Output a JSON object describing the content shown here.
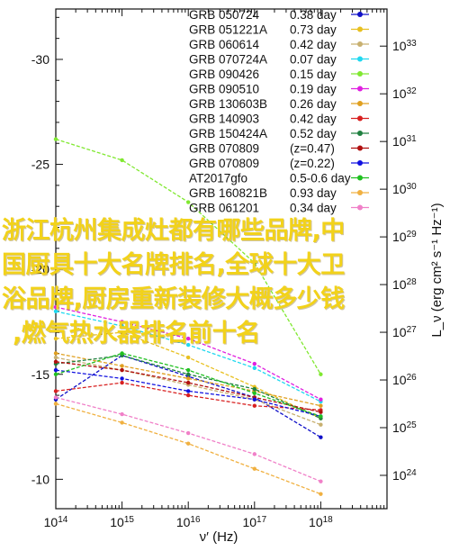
{
  "chart_data": {
    "type": "line",
    "xlabel": "ν′ (Hz)",
    "ylabel_left": "",
    "ylabel_right": "L_ν (erg cm² s⁻¹ Hz⁻¹)",
    "x_scale": "log",
    "xlim": [
      100000000000000.0,
      1e+19
    ],
    "ylim_left": [
      -8.6,
      -32.4
    ],
    "ylim_right": [
      2e+23,
      6e+33
    ],
    "x_ticks": [
      "10^14",
      "10^15",
      "10^16",
      "10^17",
      "10^18"
    ],
    "x_tick_values": [
      100000000000000.0,
      1000000000000000.0,
      1e+16,
      1e+17,
      1e+18
    ],
    "y_left_ticks": [
      "-10",
      "-15",
      "-20",
      "-25",
      "-30"
    ],
    "y_left_tick_values": [
      -10,
      -15,
      -20,
      -25,
      -30
    ],
    "y_right_ticks": [
      "10^24",
      "10^25",
      "10^26",
      "10^27",
      "10^28",
      "10^29",
      "10^30",
      "10^31",
      "10^32",
      "10^33"
    ],
    "y_right_tick_values": [
      1e+24,
      1e+25,
      1e+26,
      1e+27,
      1e+28,
      1e+29,
      1e+30,
      1e+31,
      1e+32,
      1e+33
    ],
    "grid": false,
    "legend_position": "top-right",
    "series": [
      {
        "name": "GRB 050724",
        "label": "0.38 day",
        "color": "#1010c8",
        "x": [
          100000000000000.0,
          1000000000000000.0,
          1e+16,
          1e+17,
          1e+18
        ],
        "y": [
          -13.8,
          -15.9,
          -14.9,
          -13.9,
          -12.0
        ]
      },
      {
        "name": "GRB 051221A",
        "label": "0.73 day",
        "color": "#e8c020",
        "x": [
          100000000000000.0,
          1000000000000000.0,
          1e+16,
          1e+17,
          1e+18
        ],
        "y": [
          -16.7,
          -17.0,
          -15.8,
          -14.4,
          -12.9
        ]
      },
      {
        "name": "GRB 060614",
        "label": "0.42 day",
        "color": "#c8b070",
        "x": [
          100000000000000.0,
          1000000000000000.0,
          1e+16,
          1e+17,
          1e+18
        ],
        "y": [
          -15.8,
          -15.2,
          -14.5,
          -13.8,
          -12.6
        ]
      },
      {
        "name": "GRB 070724A",
        "label": "0.07 day",
        "color": "#20d8f0",
        "x": [
          100000000000000.0,
          1000000000000000.0,
          1e+16,
          1e+17,
          1e+18
        ],
        "y": [
          -18.0,
          -17.3,
          -16.4,
          -15.3,
          -13.7
        ]
      },
      {
        "name": "GRB 090426",
        "label": "0.15 day",
        "color": "#80e830",
        "x": [
          100000000000000.0,
          1000000000000000.0,
          1e+16,
          1e+17,
          1e+18
        ],
        "y": [
          -26.2,
          -25.2,
          -23.2,
          -20.3,
          -15.0
        ]
      },
      {
        "name": "GRB 090510",
        "label": "0.19 day",
        "color": "#e020e0",
        "x": [
          100000000000000.0,
          1000000000000000.0,
          1e+16,
          1e+17,
          1e+18
        ],
        "y": [
          -18.2,
          -17.5,
          -16.7,
          -15.5,
          -13.8
        ]
      },
      {
        "name": "GRB 130603B",
        "label": "0.26 day",
        "color": "#e0a020",
        "x": [
          100000000000000.0,
          1000000000000000.0,
          1e+16,
          1e+17,
          1e+18
        ],
        "y": [
          -16.0,
          -15.4,
          -14.8,
          -14.2,
          -13.5
        ]
      },
      {
        "name": "GRB 140903",
        "label": "0.42 day",
        "color": "#d82020",
        "x": [
          100000000000000.0,
          1000000000000000.0,
          1e+16,
          1e+17,
          1e+18
        ],
        "y": [
          -14.2,
          -14.6,
          -14.0,
          -13.5,
          -13.3
        ]
      },
      {
        "name": "GRB 150424A",
        "label": "0.52 day",
        "color": "#208040",
        "x": [
          100000000000000.0,
          1000000000000000.0,
          1e+16,
          1e+17,
          1e+18
        ],
        "y": [
          -15.5,
          -15.9,
          -15.0,
          -14.3,
          -12.9
        ]
      },
      {
        "name": "GRB 070809",
        "label": "(z=0.47)",
        "color": "#b01010",
        "x": [
          100000000000000.0,
          1000000000000000.0,
          1e+16,
          1e+17,
          1e+18
        ],
        "y": [
          -15.6,
          -15.2,
          -14.6,
          -13.9,
          -13.2
        ]
      },
      {
        "name": "GRB 070809",
        "label": "(z=0.22)",
        "color": "#1010e0",
        "x": [
          100000000000000.0,
          1000000000000000.0,
          1e+16,
          1e+17,
          1e+18
        ],
        "y": [
          -15.2,
          -14.8,
          -14.2,
          -13.8,
          -13.0
        ]
      },
      {
        "name": "AT2017gfo",
        "label": "0.5-0.6 day",
        "color": "#20c020",
        "x": [
          100000000000000.0,
          1000000000000000.0,
          1e+16,
          1e+17,
          1e+18
        ],
        "y": [
          -15.0,
          -16.0,
          -15.2,
          -14.1,
          -13.0
        ]
      },
      {
        "name": "GRB 160821B",
        "label": "0.93 day",
        "color": "#f0b040",
        "x": [
          100000000000000.0,
          1000000000000000.0,
          1e+16,
          1e+17,
          1e+18
        ],
        "y": [
          -13.6,
          -12.7,
          -11.7,
          -10.5,
          -9.3
        ]
      },
      {
        "name": "GRB 061201",
        "label": "0.34 day",
        "color": "#f080c8",
        "x": [
          100000000000000.0,
          1000000000000000.0,
          1e+16,
          1e+17,
          1e+18
        ],
        "y": [
          -13.9,
          -13.1,
          -12.2,
          -11.2,
          -9.9
        ]
      }
    ]
  },
  "overlay": {
    "line1": "浙江杭州集成灶都有哪些品牌,中",
    "line2": "国厨具十大名牌排名,全球十大卫",
    "line3": "浴品牌,厨房重新装修大概多少钱",
    "line4": ",燃气热水器排名前十名"
  }
}
